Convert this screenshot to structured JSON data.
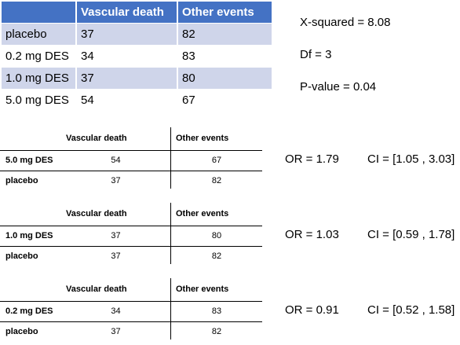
{
  "main_table": {
    "headers": [
      "",
      "Vascular death",
      "Other events"
    ],
    "rows": [
      {
        "group": "placebo",
        "vascular_death": "37",
        "other_events": "82"
      },
      {
        "group": "0.2 mg DES",
        "vascular_death": "34",
        "other_events": "83"
      },
      {
        "group": "1.0 mg DES",
        "vascular_death": "37",
        "other_events": "80"
      },
      {
        "group": "5.0 mg DES",
        "vascular_death": "54",
        "other_events": "67"
      }
    ]
  },
  "stats": {
    "x_squared": "X-squared = 8.08",
    "df": "Df = 3",
    "p_value": "P-value = 0.04"
  },
  "comparisons": [
    {
      "headers": [
        "Vascular death",
        "Other events"
      ],
      "rows": [
        {
          "label": "5.0 mg DES",
          "vascular_death": "54",
          "other_events": "67"
        },
        {
          "label": "placebo",
          "vascular_death": "37",
          "other_events": "82"
        }
      ],
      "or": "OR = 1.79",
      "ci": "CI = [1.05 , 3.03]"
    },
    {
      "headers": [
        "Vascular death",
        "Other events"
      ],
      "rows": [
        {
          "label": "1.0 mg DES",
          "vascular_death": "37",
          "other_events": "80"
        },
        {
          "label": "placebo",
          "vascular_death": "37",
          "other_events": "82"
        }
      ],
      "or": "OR = 1.03",
      "ci": "CI = [0.59 , 1.78]"
    },
    {
      "headers": [
        "Vascular death",
        "Other events"
      ],
      "rows": [
        {
          "label": "0.2 mg DES",
          "vascular_death": "34",
          "other_events": "83"
        },
        {
          "label": "placebo",
          "vascular_death": "37",
          "other_events": "82"
        }
      ],
      "or": "OR = 0.91",
      "ci": "CI = [0.52 , 1.58]"
    }
  ]
}
